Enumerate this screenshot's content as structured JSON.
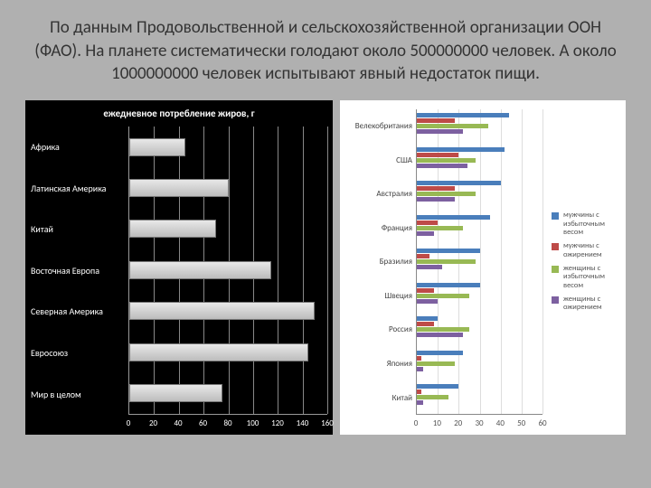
{
  "title": "По данным Продовольственной и сельскохозяйственной организации ООН (ФАО). На планете систематически голодают около 500000000 человек. А около 1000000000 человек испытывают явный недостаток пищи.",
  "left_chart": {
    "type": "bar",
    "orientation": "horizontal",
    "title": "ежедневное потребление жиров, г",
    "title_color": "#ffffff",
    "title_fontsize": 11,
    "background_color": "#000000",
    "bar_fill_top": "#e8e8e8",
    "bar_fill_bottom": "#bcbcbc",
    "bar_border": "#777777",
    "grid_color": "#888888",
    "label_color": "#ffffff",
    "label_fontsize": 10,
    "xlim": [
      0,
      160
    ],
    "xtick_step": 20,
    "xticks": [
      0,
      20,
      40,
      60,
      80,
      100,
      120,
      140,
      160
    ],
    "categories": [
      "Африка",
      "Латинская Америка",
      "Китай",
      "Восточная Европа",
      "Северная Америка",
      "Евросоюз",
      "Мир в целом"
    ],
    "values": [
      45,
      80,
      70,
      115,
      150,
      145,
      75
    ]
  },
  "right_chart": {
    "type": "bar",
    "orientation": "horizontal",
    "background_color": "#ffffff",
    "grid_color": "#dddddd",
    "label_color": "#555555",
    "label_fontsize": 9,
    "xlim": [
      0,
      60
    ],
    "xtick_step": 10,
    "xticks": [
      0,
      10,
      20,
      30,
      40,
      50,
      60
    ],
    "categories": [
      "Велекобритания",
      "США",
      "Австралия",
      "Франция",
      "Бразилия",
      "Швеция",
      "Россия",
      "Япония",
      "Китай"
    ],
    "series": [
      {
        "label": "мужчины с избыточным весом",
        "color": "#4a7ebb",
        "values": [
          44,
          42,
          40,
          35,
          30,
          30,
          10,
          22,
          20
        ]
      },
      {
        "label": "мужчины с ожирением",
        "color": "#be4b48",
        "values": [
          18,
          20,
          18,
          10,
          6,
          8,
          8,
          2,
          2
        ]
      },
      {
        "label": "женщины с избыточным весом",
        "color": "#98b954",
        "values": [
          34,
          28,
          28,
          22,
          28,
          25,
          25,
          18,
          15
        ]
      },
      {
        "label": "женщины с ожирением",
        "color": "#7d60a0",
        "values": [
          22,
          24,
          18,
          8,
          12,
          10,
          22,
          3,
          3
        ]
      }
    ],
    "legend_fontsize": 8.5
  }
}
